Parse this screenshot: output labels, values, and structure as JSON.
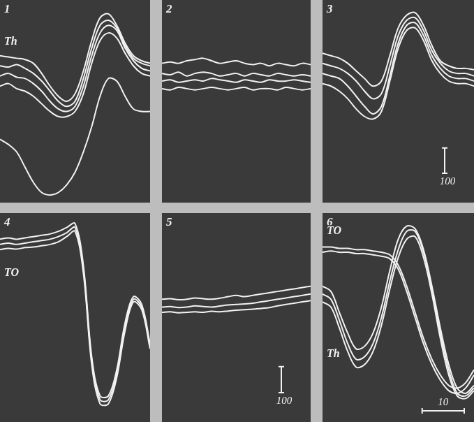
{
  "chart_data": [
    {
      "type": "line",
      "title": "1",
      "tick_labels": false,
      "x": [
        0,
        2,
        4,
        6,
        8,
        10,
        12,
        14,
        16,
        18,
        20,
        22,
        24,
        26,
        28,
        30,
        32,
        34,
        36
      ],
      "xlim": [
        0,
        36
      ],
      "ylim": [
        -400,
        400
      ],
      "annotations": [
        {
          "text": "Th",
          "x": 1,
          "y": 235
        }
      ],
      "series": [
        {
          "color": "#f2f2f2",
          "values": [
            180,
            175,
            170,
            165,
            150,
            110,
            60,
            20,
            0,
            30,
            120,
            240,
            330,
            345,
            300,
            230,
            180,
            160,
            150
          ]
        },
        {
          "color": "#f2f2f2",
          "values": [
            140,
            135,
            145,
            130,
            110,
            80,
            40,
            0,
            -20,
            0,
            90,
            210,
            300,
            320,
            290,
            220,
            170,
            150,
            140
          ]
        },
        {
          "color": "#f2f2f2",
          "values": [
            100,
            110,
            95,
            90,
            70,
            40,
            0,
            -30,
            -40,
            -20,
            60,
            180,
            270,
            300,
            280,
            210,
            160,
            130,
            120
          ]
        },
        {
          "color": "#f2f2f2",
          "values": [
            60,
            70,
            50,
            40,
            20,
            -10,
            -40,
            -60,
            -60,
            -40,
            30,
            150,
            240,
            270,
            250,
            190,
            140,
            110,
            100
          ]
        },
        {
          "color": "#f2f2f2",
          "values": [
            -150,
            -170,
            -200,
            -260,
            -320,
            -360,
            -370,
            -360,
            -330,
            -280,
            -200,
            -100,
            20,
            90,
            80,
            20,
            -30,
            -40,
            -40
          ]
        }
      ]
    },
    {
      "type": "line",
      "title": "2",
      "tick_labels": false,
      "x": [
        0,
        2,
        4,
        6,
        8,
        10,
        12,
        14,
        16,
        18,
        20,
        22,
        24,
        26,
        28,
        30,
        32,
        34,
        36
      ],
      "xlim": [
        0,
        36
      ],
      "ylim": [
        -400,
        400
      ],
      "series": [
        {
          "color": "#f2f2f2",
          "values": [
            150,
            155,
            150,
            160,
            165,
            170,
            160,
            150,
            155,
            160,
            150,
            145,
            150,
            140,
            150,
            145,
            140,
            150,
            145
          ]
        },
        {
          "color": "#f2f2f2",
          "values": [
            110,
            105,
            115,
            100,
            110,
            115,
            110,
            100,
            105,
            110,
            100,
            110,
            105,
            100,
            110,
            105,
            100,
            105,
            100
          ]
        },
        {
          "color": "#f2f2f2",
          "values": [
            80,
            85,
            75,
            80,
            85,
            80,
            90,
            85,
            80,
            75,
            85,
            80,
            75,
            85,
            80,
            80,
            85,
            80,
            75
          ]
        },
        {
          "color": "#f2f2f2",
          "values": [
            50,
            45,
            55,
            50,
            45,
            50,
            55,
            50,
            45,
            50,
            55,
            45,
            50,
            50,
            45,
            55,
            50,
            45,
            50
          ]
        }
      ]
    },
    {
      "type": "line",
      "title": "3",
      "tick_labels": false,
      "x": [
        0,
        2,
        4,
        6,
        8,
        10,
        12,
        14,
        16,
        18,
        20,
        22,
        24,
        26,
        28,
        30,
        32,
        34,
        36
      ],
      "xlim": [
        0,
        36
      ],
      "ylim": [
        -400,
        400
      ],
      "scale_bar": {
        "axis": "y",
        "value": 100
      },
      "series": [
        {
          "color": "#f2f2f2",
          "values": [
            190,
            180,
            170,
            150,
            120,
            90,
            60,
            80,
            180,
            290,
            340,
            350,
            300,
            220,
            160,
            140,
            130,
            130,
            125
          ]
        },
        {
          "color": "#f2f2f2",
          "values": [
            150,
            140,
            130,
            110,
            80,
            40,
            10,
            30,
            140,
            260,
            320,
            330,
            280,
            200,
            150,
            120,
            110,
            110,
            100
          ]
        },
        {
          "color": "#f2f2f2",
          "values": [
            110,
            100,
            90,
            60,
            20,
            -20,
            -50,
            -20,
            100,
            230,
            300,
            310,
            260,
            180,
            130,
            100,
            90,
            90,
            80
          ]
        },
        {
          "color": "#f2f2f2",
          "values": [
            70,
            60,
            40,
            10,
            -30,
            -60,
            -70,
            -40,
            80,
            210,
            280,
            290,
            240,
            160,
            110,
            80,
            70,
            70,
            60
          ]
        }
      ]
    },
    {
      "type": "line",
      "title": "4",
      "tick_labels": false,
      "x": [
        0,
        2,
        4,
        6,
        8,
        10,
        12,
        14,
        16,
        18,
        20,
        22,
        24,
        26,
        28,
        30,
        32,
        34,
        36
      ],
      "xlim": [
        0,
        36
      ],
      "ylim": [
        -400,
        400
      ],
      "annotations": [
        {
          "text": "TO",
          "x": 1,
          "y": 170
        }
      ],
      "series": [
        {
          "color": "#f2f2f2",
          "values": [
            300,
            305,
            300,
            305,
            310,
            315,
            320,
            330,
            345,
            360,
            200,
            -150,
            -300,
            -300,
            -200,
            -20,
            80,
            50,
            -100
          ]
        },
        {
          "color": "#f2f2f2",
          "values": [
            260,
            265,
            262,
            268,
            270,
            275,
            280,
            290,
            310,
            330,
            170,
            -180,
            -330,
            -330,
            -230,
            -50,
            60,
            30,
            -120
          ]
        },
        {
          "color": "#f2f2f2",
          "values": [
            280,
            285,
            280,
            285,
            290,
            295,
            300,
            310,
            325,
            345,
            185,
            -165,
            -315,
            -315,
            -215,
            -35,
            70,
            40,
            -110
          ]
        }
      ]
    },
    {
      "type": "line",
      "title": "5",
      "tick_labels": false,
      "x": [
        0,
        2,
        4,
        6,
        8,
        10,
        12,
        14,
        16,
        18,
        20,
        22,
        24,
        26,
        28,
        30,
        32,
        34,
        36
      ],
      "xlim": [
        0,
        36
      ],
      "ylim": [
        -400,
        400
      ],
      "scale_bar": {
        "axis": "y",
        "value": 100
      },
      "series": [
        {
          "color": "#f2f2f2",
          "values": [
            70,
            72,
            68,
            70,
            75,
            72,
            70,
            74,
            80,
            85,
            80,
            85,
            90,
            95,
            100,
            105,
            110,
            115,
            120
          ]
        },
        {
          "color": "#f2f2f2",
          "values": [
            40,
            42,
            38,
            40,
            45,
            42,
            40,
            44,
            48,
            50,
            52,
            55,
            60,
            65,
            70,
            75,
            80,
            85,
            90
          ]
        },
        {
          "color": "#f2f2f2",
          "values": [
            20,
            22,
            18,
            20,
            22,
            20,
            24,
            22,
            25,
            28,
            30,
            32,
            35,
            38,
            45,
            50,
            55,
            60,
            65
          ]
        }
      ]
    },
    {
      "type": "line",
      "title": "6",
      "tick_labels": false,
      "x": [
        0,
        2,
        4,
        6,
        8,
        10,
        12,
        14,
        16,
        18,
        20,
        22,
        24,
        26,
        28,
        30,
        32,
        34,
        36
      ],
      "xlim": [
        0,
        36
      ],
      "ylim": [
        -400,
        400
      ],
      "scale_bar": {
        "axis": "x",
        "value": 10
      },
      "annotations": [
        {
          "text": "TO",
          "x": 1,
          "y": 330
        },
        {
          "text": "Th",
          "x": 1,
          "y": -140
        }
      ],
      "series": [
        {
          "color": "#f2f2f2",
          "values": [
            270,
            270,
            265,
            265,
            260,
            260,
            255,
            250,
            240,
            200,
            120,
            20,
            -80,
            -160,
            -220,
            -260,
            -270,
            -250,
            -200
          ]
        },
        {
          "color": "#f2f2f2",
          "values": [
            250,
            255,
            250,
            250,
            245,
            245,
            240,
            235,
            225,
            185,
            100,
            0,
            -100,
            -180,
            -240,
            -280,
            -290,
            -270,
            -220
          ]
        },
        {
          "color": "#f2f2f2",
          "values": [
            120,
            100,
            20,
            -60,
            -120,
            -110,
            -60,
            40,
            180,
            300,
            350,
            340,
            260,
            120,
            -40,
            -180,
            -270,
            -290,
            -260
          ]
        },
        {
          "color": "#f2f2f2",
          "values": [
            90,
            70,
            -10,
            -100,
            -160,
            -150,
            -100,
            0,
            140,
            260,
            330,
            330,
            250,
            110,
            -60,
            -200,
            -290,
            -300,
            -270
          ]
        },
        {
          "color": "#f2f2f2",
          "values": [
            60,
            40,
            -40,
            -130,
            -190,
            -180,
            -130,
            -30,
            110,
            230,
            300,
            310,
            230,
            90,
            -80,
            -220,
            -300,
            -310,
            -280
          ]
        }
      ]
    }
  ]
}
